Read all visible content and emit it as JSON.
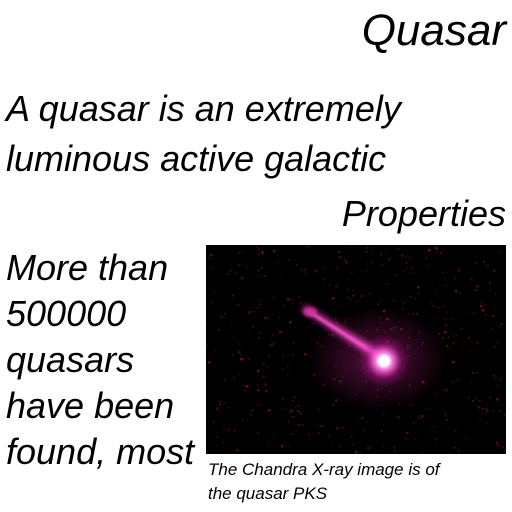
{
  "title": "Quasar",
  "intro": {
    "lines": [
      "A quasar is an extremely",
      "luminous active galactic"
    ]
  },
  "section_heading": "Properties",
  "body": {
    "lines": [
      "More than",
      "500000",
      "quasars",
      "have been",
      "found, most"
    ]
  },
  "figure": {
    "kind": "x-ray-astronomy-image",
    "colors": {
      "background": "#000000",
      "glow": "#ff66d9",
      "core": "#ffffff",
      "noise": "#7a0f2a"
    }
  },
  "caption": {
    "lines": [
      "The Chandra X-ray image is of",
      "the quasar PKS"
    ]
  }
}
